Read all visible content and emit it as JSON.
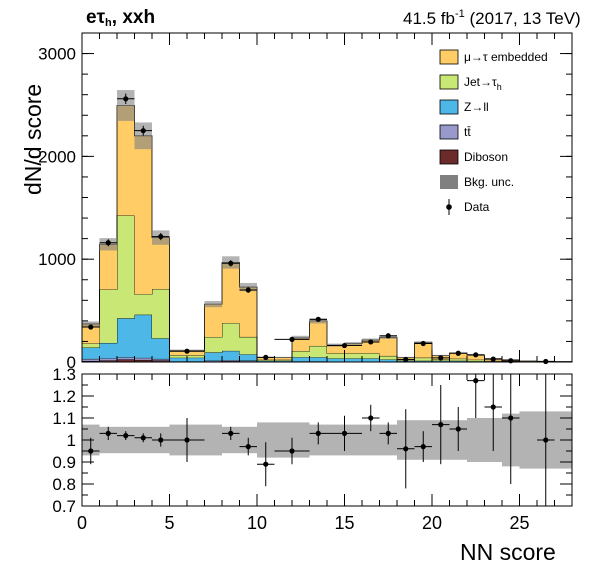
{
  "header": {
    "channel_main": "eτ",
    "channel_sub": "h",
    "channel_suffix": ", xxh",
    "lumi_main": "41.5 fb",
    "lumi_sup": "-1",
    "lumi_suffix": " (2017, 13 TeV)"
  },
  "axes": {
    "ylabel_top": "dN/d score",
    "xlabel": "NN score"
  },
  "legend": [
    {
      "key": "emb",
      "label": "μ→τ embedded",
      "color": "#ffcc66",
      "kind": "box"
    },
    {
      "key": "jet",
      "label": "Jet→τ",
      "sub": "h",
      "color": "#c8e774",
      "kind": "box"
    },
    {
      "key": "ztt",
      "label": "Z→ll",
      "color": "#4db8e8",
      "kind": "box"
    },
    {
      "key": "tt",
      "label": "tt̄",
      "color": "#9999cc",
      "kind": "box"
    },
    {
      "key": "vv",
      "label": "Diboson",
      "color": "#6b2b2b",
      "kind": "box"
    },
    {
      "key": "unc",
      "label": "Bkg. unc.",
      "color": "#808080",
      "kind": "box"
    },
    {
      "key": "data",
      "label": "Data",
      "color": "#000000",
      "kind": "point"
    }
  ],
  "chart_data": {
    "type": "bar",
    "stacked": true,
    "top_panel": {
      "ylim": [
        0,
        3200
      ],
      "yticks": [
        0,
        1000,
        2000,
        3000
      ],
      "ytick_labels": [
        "0",
        "1000",
        "2000",
        "3000"
      ]
    },
    "ratio_panel": {
      "ylim": [
        0.7,
        1.3
      ],
      "yticks": [
        0.7,
        0.8,
        0.9,
        1.0,
        1.1,
        1.2,
        1.3
      ],
      "ytick_labels": [
        "0.7",
        "0.8",
        "0.9",
        "1",
        "1.1",
        "1.2",
        "1.3"
      ]
    },
    "xlim": [
      0,
      28
    ],
    "xticks": [
      0,
      5,
      10,
      15,
      20,
      25
    ],
    "xtick_labels": [
      "0",
      "5",
      "10",
      "15",
      "20",
      "25"
    ],
    "bins": [
      [
        0,
        1
      ],
      [
        1,
        2
      ],
      [
        2,
        3
      ],
      [
        3,
        4
      ],
      [
        4,
        5
      ],
      [
        5,
        6
      ],
      [
        6,
        7
      ],
      [
        7,
        8
      ],
      [
        8,
        9
      ],
      [
        9,
        10
      ],
      [
        10,
        11
      ],
      [
        11,
        12
      ],
      [
        12,
        13
      ],
      [
        13,
        14
      ],
      [
        14,
        15
      ],
      [
        15,
        16
      ],
      [
        16,
        17
      ],
      [
        17,
        18
      ],
      [
        18,
        19
      ],
      [
        19,
        20
      ],
      [
        20,
        21
      ],
      [
        21,
        22
      ],
      [
        22,
        23
      ],
      [
        23,
        24
      ],
      [
        24,
        25
      ],
      [
        25,
        26
      ],
      [
        26,
        27
      ],
      [
        27,
        28
      ]
    ],
    "series": [
      {
        "name": "Diboson",
        "color": "#6b2b2b",
        "values": [
          10,
          15,
          25,
          20,
          15,
          3,
          3,
          5,
          8,
          6,
          2,
          2,
          3,
          3,
          2,
          2,
          2,
          2,
          1,
          1,
          1,
          1,
          1,
          0.5,
          0.5,
          0.2,
          0.1,
          0.1
        ]
      },
      {
        "name": "tt̄",
        "color": "#9999cc",
        "values": [
          20,
          20,
          20,
          20,
          15,
          3,
          3,
          8,
          10,
          8,
          2,
          2,
          3,
          3,
          2,
          2,
          2,
          2,
          1,
          1,
          1,
          1,
          1,
          0.5,
          0.5,
          0.2,
          0.1,
          0.1
        ]
      },
      {
        "name": "Z→ll",
        "color": "#4db8e8",
        "values": [
          110,
          150,
          380,
          420,
          200,
          35,
          35,
          80,
          90,
          60,
          8,
          8,
          40,
          40,
          30,
          30,
          30,
          20,
          10,
          10,
          10,
          10,
          5,
          5,
          3,
          2,
          1,
          0.5
        ]
      },
      {
        "name": "Jet→τh",
        "color": "#c8e774",
        "values": [
          40,
          520,
          1000,
          200,
          480,
          25,
          25,
          150,
          270,
          170,
          10,
          10,
          60,
          110,
          50,
          50,
          50,
          35,
          10,
          30,
          15,
          20,
          15,
          5,
          5,
          2,
          1,
          0.5
        ]
      },
      {
        "name": "μ→τ embedded",
        "color": "#ffcc66",
        "values": [
          190,
          440,
          1070,
          1540,
          500,
          45,
          45,
          320,
          590,
          485,
          23,
          23,
          129,
          244,
          80,
          95,
          130,
          181,
          23,
          148,
          36,
          55,
          44,
          21,
          13,
          5.6,
          4.7,
          3.8
        ]
      }
    ],
    "uncertainty": {
      "name": "Bkg. unc.",
      "abs": [
        25,
        60,
        150,
        130,
        70,
        10,
        10,
        30,
        60,
        40,
        5,
        5,
        20,
        25,
        15,
        15,
        15,
        15,
        5,
        12,
        6,
        6,
        5,
        2,
        2,
        1,
        1,
        1
      ],
      "ratio_half_width": [
        0.07,
        0.06,
        0.06,
        0.06,
        0.06,
        0.07,
        0.07,
        0.07,
        0.06,
        0.06,
        0.08,
        0.08,
        0.08,
        0.07,
        0.07,
        0.07,
        0.07,
        0.07,
        0.09,
        0.09,
        0.09,
        0.09,
        0.1,
        0.1,
        0.12,
        0.13,
        0.13,
        0.13
      ]
    },
    "data": {
      "name": "Data",
      "x": [
        0.5,
        1.5,
        2.5,
        3.5,
        4.5,
        6,
        8.5,
        9.5,
        10.5,
        12,
        13.5,
        15,
        16.5,
        17.5,
        18.5,
        19.5,
        20.5,
        21.5,
        22.5,
        23.5,
        24.5,
        26.5
      ],
      "y": [
        340,
        1160,
        2560,
        2250,
        1220,
        105,
        960,
        700,
        45,
        220,
        415,
        160,
        195,
        255,
        25,
        180,
        40,
        85,
        70,
        28,
        12,
        5
      ],
      "ratio": [
        0.95,
        1.03,
        1.02,
        1.01,
        1.0,
        1.0,
        1.03,
        0.97,
        0.89,
        0.95,
        1.03,
        1.03,
        1.1,
        1.03,
        0.96,
        0.97,
        1.07,
        1.05,
        1.27,
        1.15,
        1.1,
        1.0
      ],
      "xerr_lo": [
        0.5,
        0.5,
        0.5,
        0.5,
        0.5,
        1,
        0.5,
        0.5,
        0.5,
        1,
        0.5,
        1,
        0.5,
        0.5,
        0.5,
        0.5,
        0.5,
        0.5,
        0.5,
        0.5,
        0.5,
        0.5
      ],
      "xerr_hi": [
        0.5,
        0.5,
        0.5,
        0.5,
        0.5,
        1,
        0.5,
        0.5,
        0.5,
        1,
        0.5,
        1,
        0.5,
        0.5,
        0.5,
        0.5,
        0.5,
        0.5,
        0.5,
        0.5,
        0.5,
        0.5
      ],
      "ratio_err": [
        0.06,
        0.03,
        0.02,
        0.02,
        0.03,
        0.1,
        0.03,
        0.04,
        0.1,
        0.06,
        0.05,
        0.08,
        0.06,
        0.05,
        0.18,
        0.07,
        0.18,
        0.1,
        0.17,
        0.2,
        0.3,
        0.4
      ]
    }
  }
}
